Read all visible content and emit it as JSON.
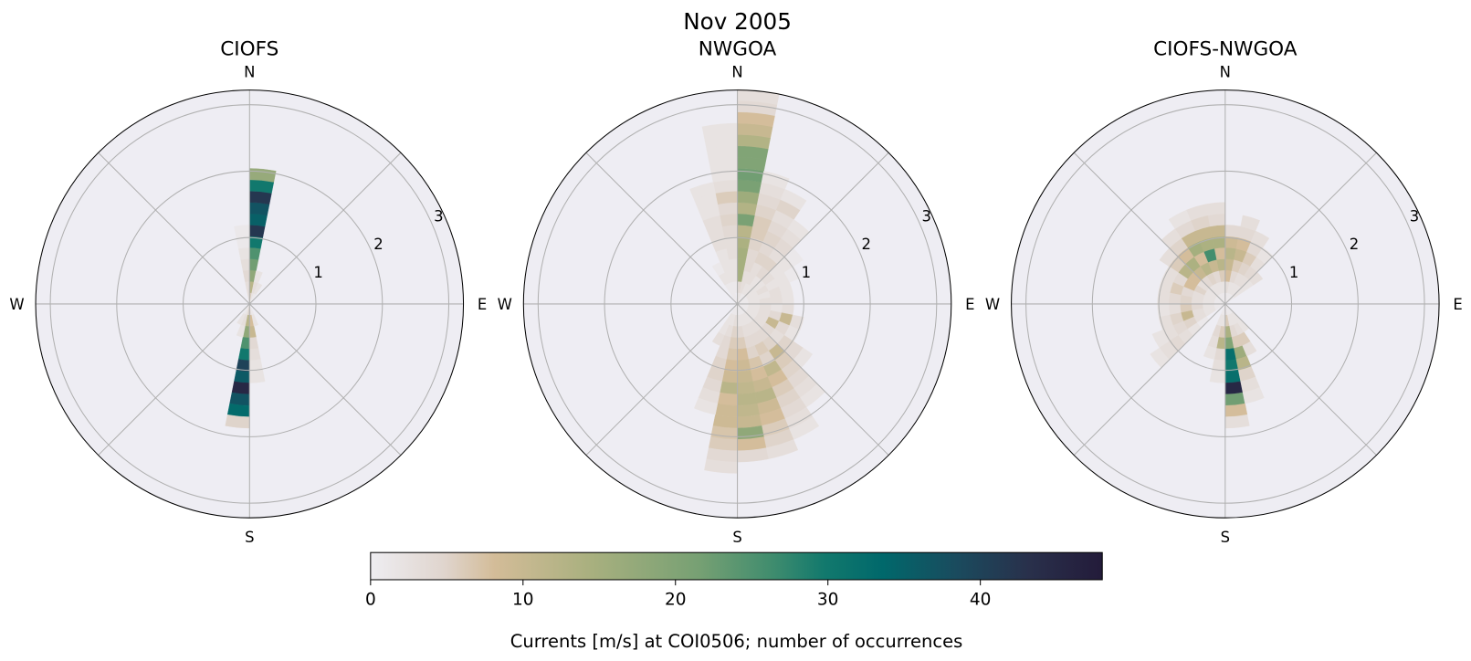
{
  "chart_data": {
    "type": "polar-histogram",
    "suptitle": "Nov 2005",
    "direction_bin_width_deg": 11.25,
    "speed_bin_width": 0.17,
    "rlim": [
      0,
      3.22
    ],
    "radial_ticks": [
      "1",
      "2",
      "3"
    ],
    "radial_tick_values": [
      1,
      2,
      3
    ],
    "compass_labels": {
      "N": "N",
      "E": "E",
      "S": "S",
      "W": "W"
    },
    "grid": true,
    "colorbar": {
      "label": "Currents [m/s] at COI0506; number of occurrences",
      "vmin": 0,
      "vmax": 48,
      "ticks": [
        0,
        10,
        20,
        30,
        40
      ],
      "tick_labels": [
        "0",
        "10",
        "20",
        "30",
        "40"
      ],
      "colormap_stops": [
        [
          0.0,
          "#eeedf1"
        ],
        [
          0.1,
          "#e0d5ce"
        ],
        [
          0.17,
          "#d3bc98"
        ],
        [
          0.3,
          "#a9b07f"
        ],
        [
          0.45,
          "#76a073"
        ],
        [
          0.55,
          "#3f8c6e"
        ],
        [
          0.62,
          "#12796d"
        ],
        [
          0.7,
          "#00686b"
        ],
        [
          0.8,
          "#1a4b5e"
        ],
        [
          0.9,
          "#29304b"
        ],
        [
          1.0,
          "#231b3a"
        ]
      ],
      "orientation": "horizontal"
    },
    "panels": [
      {
        "title": "CIOFS",
        "sectors": [
          {
            "dir": 0,
            "counts": [
              6,
              12,
              18,
              22,
              25,
              30,
              42,
              35,
              37,
              42,
              30,
              17
            ]
          },
          {
            "dir": 348.75,
            "counts": [
              3,
              3,
              4,
              3,
              2,
              1,
              1
            ]
          },
          {
            "dir": 11.25,
            "counts": [
              2,
              3,
              2
            ]
          },
          {
            "dir": 180,
            "counts": [
              5,
              12,
              18,
              25,
              30,
              40,
              36,
              45,
              37,
              33,
              5
            ]
          },
          {
            "dir": 168.75,
            "counts": [
              3,
              8,
              10,
              4,
              3,
              2,
              2
            ]
          },
          {
            "dir": 191.25,
            "counts": [
              2,
              3,
              2
            ]
          },
          {
            "dir": 22.5,
            "counts": [
              1,
              2
            ]
          },
          {
            "dir": 157.5,
            "counts": [
              1,
              2
            ]
          },
          {
            "dir": 202.5,
            "counts": [
              1,
              2
            ]
          }
        ]
      },
      {
        "title": "NWGOA",
        "sectors": [
          {
            "dir": 0,
            "counts": [
              2,
              4,
              15,
              15,
              15,
              14,
              12,
              21,
              13,
              16,
              21,
              22,
              20,
              20,
              13,
              10,
              8,
              4,
              3
            ]
          },
          {
            "dir": 348.75,
            "counts": [
              0,
              1,
              2,
              2,
              3,
              3,
              4,
              5,
              4,
              6,
              3,
              2,
              2,
              2,
              2,
              2
            ]
          },
          {
            "dir": 337.5,
            "counts": [
              1,
              1,
              2,
              2,
              2,
              3,
              3,
              3,
              2,
              2,
              2
            ]
          },
          {
            "dir": 326.25,
            "counts": [
              1,
              1,
              2,
              1
            ]
          },
          {
            "dir": 11.25,
            "counts": [
              2,
              3,
              3,
              4,
              4,
              5,
              6,
              6,
              5,
              4,
              3,
              2
            ]
          },
          {
            "dir": 22.5,
            "counts": [
              1,
              2,
              3,
              3,
              5,
              4,
              5,
              4,
              3,
              5,
              2
            ]
          },
          {
            "dir": 33.75,
            "counts": [
              1,
              2,
              2,
              4,
              5,
              3,
              4,
              3,
              2
            ]
          },
          {
            "dir": 45,
            "counts": [
              1,
              2,
              2,
              3,
              2,
              2,
              1
            ]
          },
          {
            "dir": 56.25,
            "counts": [
              1,
              2,
              3,
              2,
              2,
              1
            ]
          },
          {
            "dir": 67.5,
            "counts": [
              1,
              2,
              2,
              3,
              2
            ]
          },
          {
            "dir": 78.75,
            "counts": [
              1,
              2,
              3,
              3,
              2
            ]
          },
          {
            "dir": 90,
            "counts": [
              1,
              2,
              3,
              2,
              3
            ]
          },
          {
            "dir": 101.25,
            "counts": [
              1,
              2,
              3,
              4,
              10,
              3
            ]
          },
          {
            "dir": 112.5,
            "counts": [
              1,
              2,
              3,
              10,
              4,
              2
            ]
          },
          {
            "dir": 123.75,
            "counts": [
              1,
              2,
              3,
              4,
              3,
              5,
              4,
              2
            ]
          },
          {
            "dir": 135,
            "counts": [
              1,
              2,
              3,
              4,
              5,
              10,
              6,
              5,
              4,
              3,
              2
            ]
          },
          {
            "dir": 146.25,
            "counts": [
              1,
              2,
              3,
              4,
              6,
              5,
              11,
              8,
              6,
              5,
              4,
              3,
              2
            ]
          },
          {
            "dir": 157.5,
            "counts": [
              1,
              2,
              3,
              4,
              5,
              7,
              8,
              10,
              12,
              9,
              8,
              6,
              5,
              3
            ]
          },
          {
            "dir": 168.75,
            "counts": [
              1,
              2,
              4,
              6,
              8,
              9,
              10,
              11,
              12,
              11,
              10,
              18,
              8,
              4
            ]
          },
          {
            "dir": 180,
            "counts": [
              1,
              3,
              5,
              6,
              7,
              8,
              9,
              12,
              8,
              9,
              9,
              7,
              6,
              4,
              3
            ]
          },
          {
            "dir": 191.25,
            "counts": [
              1,
              2,
              3,
              4,
              4,
              5,
              5,
              4,
              3,
              2
            ]
          },
          {
            "dir": 202.5,
            "counts": [
              1,
              2,
              2,
              3
            ]
          }
        ]
      },
      {
        "title": "CIOFS-NWGOA",
        "sectors": [
          {
            "dir": 168.75,
            "counts": [
              2,
              6,
              14,
              20,
              32,
              30,
              32,
              45,
              22,
              8,
              3
            ]
          },
          {
            "dir": 157.5,
            "counts": [
              1,
              2,
              4,
              6,
              16,
              12,
              5,
              3,
              2
            ]
          },
          {
            "dir": 146.25,
            "counts": [
              1,
              2,
              3,
              6,
              3
            ]
          },
          {
            "dir": 135,
            "counts": [
              1,
              2,
              2
            ]
          },
          {
            "dir": 180,
            "counts": [
              1,
              2,
              6,
              12,
              4,
              3,
              2
            ]
          },
          {
            "dir": 191.25,
            "counts": [
              1,
              2,
              4,
              3,
              2
            ]
          },
          {
            "dir": 0,
            "counts": [
              1,
              3,
              8,
              10,
              12,
              9,
              4
            ]
          },
          {
            "dir": 348.75,
            "counts": [
              1,
              2,
              6,
              12,
              8,
              14,
              10,
              4,
              3
            ]
          },
          {
            "dir": 337.5,
            "counts": [
              1,
              2,
              4,
              10,
              26,
              14,
              10,
              5,
              3
            ]
          },
          {
            "dir": 326.25,
            "counts": [
              1,
              2,
              5,
              12,
              8,
              15,
              10,
              4,
              2
            ]
          },
          {
            "dir": 315,
            "counts": [
              1,
              2,
              4,
              10,
              14,
              8,
              5,
              3
            ]
          },
          {
            "dir": 303.75,
            "counts": [
              1,
              2,
              3,
              8,
              12,
              6,
              3
            ]
          },
          {
            "dir": 292.5,
            "counts": [
              1,
              2,
              5,
              8,
              4,
              3
            ]
          },
          {
            "dir": 281.25,
            "counts": [
              1,
              2,
              3,
              4,
              6,
              3
            ]
          },
          {
            "dir": 270,
            "counts": [
              1,
              2,
              3,
              5,
              4,
              3
            ]
          },
          {
            "dir": 258.75,
            "counts": [
              1,
              2,
              4,
              6,
              3,
              2
            ]
          },
          {
            "dir": 247.5,
            "counts": [
              1,
              2,
              3,
              10,
              5,
              3
            ]
          },
          {
            "dir": 236.25,
            "counts": [
              1,
              2,
              3,
              5,
              4,
              3,
              2
            ]
          },
          {
            "dir": 225,
            "counts": [
              0,
              0,
              1,
              2,
              3,
              4,
              3,
              2
            ]
          },
          {
            "dir": 11.25,
            "counts": [
              1,
              2,
              4,
              6,
              10,
              8,
              4,
              3
            ]
          },
          {
            "dir": 22.5,
            "counts": [
              1,
              2,
              3,
              5,
              6,
              4,
              3
            ]
          },
          {
            "dir": 33.75,
            "counts": [
              1,
              2,
              3,
              4,
              3,
              2
            ]
          },
          {
            "dir": 45,
            "counts": [
              1,
              2,
              2,
              3
            ]
          }
        ]
      }
    ]
  },
  "colors": {
    "axes_background": "#eeedf3",
    "grid": "#b0b0b0",
    "spine": "#000000"
  }
}
